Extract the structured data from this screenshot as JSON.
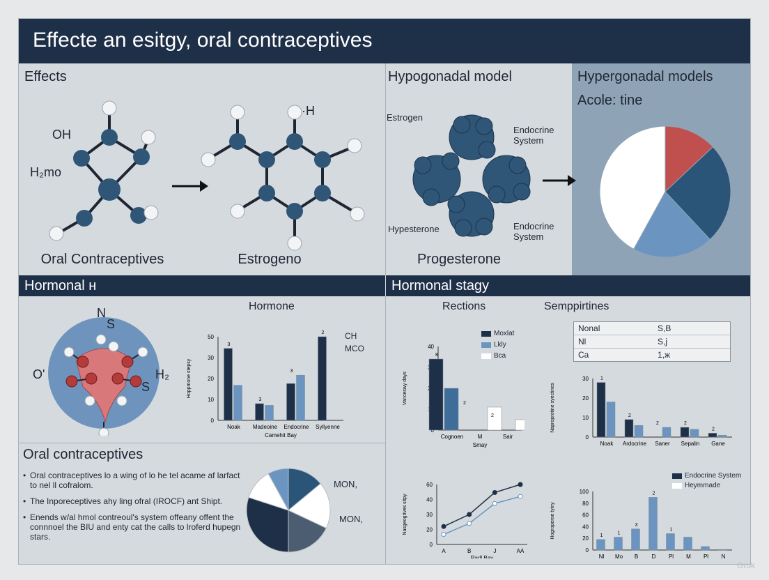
{
  "title": "Effecte an esitgy, oral contraceptives",
  "top_sections": {
    "effects": "Effects",
    "hypo": "Hypogonadal model",
    "hyper": "Hypergonadal models",
    "hyper_sub": "Acole: tine"
  },
  "molecule1": {
    "oh": "OH",
    "h2mo": "H₂mo",
    "caption": "Oral Contraceptives"
  },
  "molecule2": {
    "h": "·H",
    "caption": "Estrogeno"
  },
  "molecule3": {
    "estrogen": "Estrogen",
    "endo1": "Endocrine System",
    "hyp": "Hypesterone",
    "endo2": "Endocrine System",
    "caption": "Progesterone"
  },
  "bands": {
    "left": "Hormonal н",
    "right": "Hormonal stagy"
  },
  "hormone_molecule": {
    "n": "N",
    "s1": "S",
    "o": "O'",
    "h": "H₂",
    "s2": "S"
  },
  "chart_hormone": {
    "title": "Hormone",
    "ylabel": "Hoppmone stepsy",
    "xlabel": "Camehit Bay",
    "yticks": [
      "50",
      "30",
      "20",
      "10",
      "0"
    ],
    "xticks": [
      "Noak",
      "Madeoine",
      "Endocrine",
      "Syllyenne"
    ],
    "legend": [
      "CH",
      "MCO"
    ],
    "labels": [
      "3",
      "3",
      "3",
      "2"
    ]
  },
  "chart_rections": {
    "title": "Rections",
    "ylabel": "Vanceswy days",
    "xlabel": "Smay",
    "yticks": [
      "40",
      "30",
      "20",
      "10",
      "0"
    ],
    "xticks": [
      "Cognoen",
      "M",
      "Sair"
    ],
    "legend": [
      "Moxlat",
      "Lkly",
      "Bca"
    ],
    "labels": [
      "8",
      "2",
      "2"
    ]
  },
  "semp": {
    "title": "Semppirtines",
    "table": [
      [
        "Nonal",
        "S,B"
      ],
      [
        "Nl",
        "S,ј"
      ],
      [
        "Ca",
        "1,ж"
      ]
    ],
    "ylabel": "Naproprotine syectines",
    "yticks": [
      "30",
      "20",
      "10",
      "0"
    ],
    "xticks": [
      "Noak",
      "Ardocrine",
      "Saner",
      "Sepalin",
      "Gane"
    ],
    "labels": [
      "1",
      "2",
      "2",
      "2",
      "2",
      "2"
    ]
  },
  "oral_section": {
    "title": "Oral contraceptives",
    "bullets": [
      "Oral contraceptives lo a wing of lo he tel acame af larfact to nel ll cofralom.",
      "The Inporeceptives ahy ling ofral (IROCF) ant Shipt.",
      "Enends w/al hmol contreoul's system offeany offent the connnoel the BIU and enty cat the calls to lroferd hupegn stars."
    ],
    "pie_labels": [
      "MON,",
      "MON,"
    ]
  },
  "chart_line": {
    "ylabel": "Nasgeogrives sitpy",
    "xlabel": "Rarll Bay",
    "yticks": [
      "60",
      "40",
      "30",
      "20",
      "0"
    ],
    "xticks": [
      "A",
      "B",
      "J",
      "AA"
    ]
  },
  "chart_endo": {
    "ylabel": "Hogroperoe tyiny",
    "xlabel": "Conreet Gagy",
    "yticks": [
      "100",
      "80",
      "60",
      "40",
      "20",
      "0"
    ],
    "xticks": [
      "Nl",
      "Mo",
      "B",
      "D",
      "Pl",
      "M",
      "Pl",
      "N"
    ],
    "legend": [
      "Endocrine System",
      "Heymmade"
    ],
    "labels": [
      "1",
      "1",
      "3",
      "2",
      "1"
    ]
  },
  "watermark": "Grok",
  "chart_data": [
    {
      "type": "bar",
      "title": "Hormone",
      "categories": [
        "Noak",
        "Madeoine",
        "Endocrine",
        "Syllyenne"
      ],
      "series": [
        {
          "name": "CH",
          "values": [
            43,
            10,
            22,
            50
          ]
        },
        {
          "name": "MCO",
          "values": [
            21,
            9,
            27,
            0
          ]
        }
      ],
      "ylim": [
        0,
        50
      ]
    },
    {
      "type": "bar",
      "title": "Rections",
      "categories": [
        "Cognoen",
        "M",
        "Sair"
      ],
      "series": [
        {
          "name": "Moxlat",
          "values": [
            34,
            0,
            0
          ]
        },
        {
          "name": "Lkly",
          "values": [
            20,
            0,
            0
          ]
        },
        {
          "name": "Bca",
          "values": [
            0,
            11,
            5
          ]
        }
      ],
      "ylim": [
        0,
        40
      ]
    },
    {
      "type": "bar",
      "title": "Semppirtines",
      "categories": [
        "Noak",
        "Ardocrine",
        "Saner",
        "Sepalin",
        "Gane"
      ],
      "series": [
        {
          "name": "",
          "values": [
            28,
            9,
            0,
            5,
            2
          ]
        },
        {
          "name": "",
          "values": [
            18,
            6,
            5,
            4,
            1
          ]
        }
      ],
      "ylim": [
        0,
        30
      ]
    },
    {
      "type": "line",
      "xticks": [
        "A",
        "B",
        "J",
        "AA"
      ],
      "series": [
        {
          "name": "",
          "values": [
            18,
            30,
            52,
            60
          ]
        },
        {
          "name": "",
          "values": [
            10,
            21,
            41,
            48
          ]
        }
      ],
      "ylim": [
        0,
        60
      ]
    },
    {
      "type": "bar",
      "categories": [
        "Nl",
        "Mo",
        "B",
        "D",
        "Pl",
        "M",
        "Pl",
        "N"
      ],
      "series": [
        {
          "name": "Endocrine System",
          "values": [
            18,
            22,
            36,
            90,
            28,
            22,
            6,
            1
          ]
        }
      ],
      "ylim": [
        0,
        100
      ]
    },
    {
      "type": "pie",
      "title": "Hypergonadal models",
      "slices": [
        {
          "color": "#c0504d",
          "value": 13
        },
        {
          "color": "#2a5478",
          "value": 25
        },
        {
          "color": "#6b95c0",
          "value": 20
        },
        {
          "color": "#ffffff",
          "value": 42
        }
      ]
    }
  ]
}
